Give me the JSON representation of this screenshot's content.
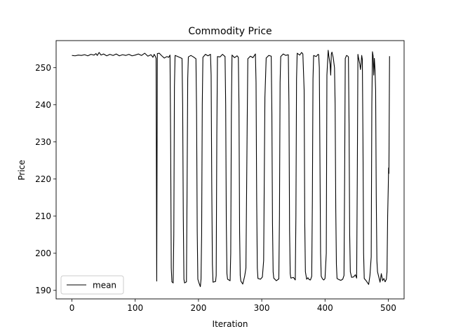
{
  "chart_data": {
    "type": "line",
    "title": "Commodity Price",
    "xlabel": "Iteration",
    "ylabel": "Price",
    "xlim": [
      -25,
      525
    ],
    "ylim": [
      187.7,
      257.3
    ],
    "xticks": [
      0,
      100,
      200,
      300,
      400,
      500
    ],
    "yticks": [
      190,
      200,
      210,
      220,
      230,
      240,
      250
    ],
    "grid": false,
    "legend_position": "lower-left",
    "series": [
      {
        "name": "mean",
        "color": "#000000",
        "points": [
          [
            0,
            253.3
          ],
          [
            5,
            253.2
          ],
          [
            10,
            253.4
          ],
          [
            15,
            253.3
          ],
          [
            20,
            253.5
          ],
          [
            25,
            253.2
          ],
          [
            30,
            253.6
          ],
          [
            35,
            253.4
          ],
          [
            38,
            253.8
          ],
          [
            40,
            253.3
          ],
          [
            43,
            254.1
          ],
          [
            46,
            253.4
          ],
          [
            50,
            253.7
          ],
          [
            55,
            253.2
          ],
          [
            60,
            253.6
          ],
          [
            65,
            253.3
          ],
          [
            70,
            253.7
          ],
          [
            75,
            253.2
          ],
          [
            80,
            253.5
          ],
          [
            85,
            253.3
          ],
          [
            90,
            253.6
          ],
          [
            95,
            253.2
          ],
          [
            100,
            253.4
          ],
          [
            105,
            253.7
          ],
          [
            110,
            253.3
          ],
          [
            115,
            253.9
          ],
          [
            120,
            253.1
          ],
          [
            125,
            253.5
          ],
          [
            128,
            252.8
          ],
          [
            130,
            253.6
          ],
          [
            132,
            253.0
          ],
          [
            133,
            252.5
          ],
          [
            134,
            192.5
          ],
          [
            135,
            253.8
          ],
          [
            138,
            253.9
          ],
          [
            142,
            253.2
          ],
          [
            146,
            252.6
          ],
          [
            150,
            253.0
          ],
          [
            153,
            252.8
          ],
          [
            155,
            253.4
          ],
          [
            156,
            230
          ],
          [
            157,
            196
          ],
          [
            158,
            192.3
          ],
          [
            160,
            192.0
          ],
          [
            161,
            205
          ],
          [
            162,
            245
          ],
          [
            163,
            253.3
          ],
          [
            166,
            253.1
          ],
          [
            170,
            252.8
          ],
          [
            174,
            252.5
          ],
          [
            175,
            240
          ],
          [
            176,
            210
          ],
          [
            177,
            193
          ],
          [
            178,
            192.0
          ],
          [
            181,
            192.3
          ],
          [
            182,
            218
          ],
          [
            183,
            247
          ],
          [
            184,
            252.9
          ],
          [
            188,
            253.3
          ],
          [
            192,
            252.9
          ],
          [
            196,
            252.4
          ],
          [
            197,
            238
          ],
          [
            198,
            206
          ],
          [
            199,
            193
          ],
          [
            201,
            191.9
          ],
          [
            203,
            191.0
          ],
          [
            204,
            193
          ],
          [
            205,
            205
          ],
          [
            206,
            240
          ],
          [
            207,
            252.8
          ],
          [
            211,
            253.6
          ],
          [
            215,
            253.2
          ],
          [
            219,
            253.6
          ],
          [
            220,
            248
          ],
          [
            221,
            218
          ],
          [
            222,
            197
          ],
          [
            223,
            192.2
          ],
          [
            227,
            192.4
          ],
          [
            228,
            194
          ],
          [
            229,
            232
          ],
          [
            230,
            253.0
          ],
          [
            234,
            252.9
          ],
          [
            238,
            253.6
          ],
          [
            242,
            253.0
          ],
          [
            243,
            240
          ],
          [
            244,
            208
          ],
          [
            245,
            194.5
          ],
          [
            246,
            193.0
          ],
          [
            250,
            192.6
          ],
          [
            251,
            200
          ],
          [
            252,
            238
          ],
          [
            253,
            253.4
          ],
          [
            257,
            252.7
          ],
          [
            261,
            253.2
          ],
          [
            263,
            252.8
          ],
          [
            264,
            240
          ],
          [
            265,
            206
          ],
          [
            266,
            194
          ],
          [
            267,
            192.5
          ],
          [
            270,
            191.7
          ],
          [
            273,
            193.8
          ],
          [
            275,
            196
          ],
          [
            277,
            235
          ],
          [
            278,
            252.4
          ],
          [
            282,
            253.1
          ],
          [
            286,
            252.7
          ],
          [
            290,
            253.7
          ],
          [
            291,
            246
          ],
          [
            292,
            214
          ],
          [
            293,
            196
          ],
          [
            294,
            193.2
          ],
          [
            298,
            193.0
          ],
          [
            301,
            193.6
          ],
          [
            303,
            198
          ],
          [
            305,
            242
          ],
          [
            307,
            252.6
          ],
          [
            311,
            253.3
          ],
          [
            315,
            253.1
          ],
          [
            316,
            238
          ],
          [
            317,
            208
          ],
          [
            318,
            195
          ],
          [
            319,
            193.3
          ],
          [
            323,
            192.6
          ],
          [
            327,
            193.1
          ],
          [
            328,
            210
          ],
          [
            329,
            246
          ],
          [
            330,
            253.0
          ],
          [
            334,
            253.7
          ],
          [
            338,
            253.3
          ],
          [
            342,
            253.5
          ],
          [
            343,
            240
          ],
          [
            344,
            206
          ],
          [
            345,
            194.5
          ],
          [
            346,
            193.3
          ],
          [
            350,
            193.5
          ],
          [
            353,
            192.8
          ],
          [
            354,
            210
          ],
          [
            355,
            247
          ],
          [
            356,
            253.9
          ],
          [
            360,
            253.4
          ],
          [
            363,
            254.1
          ],
          [
            365,
            253.7
          ],
          [
            367,
            244
          ],
          [
            368,
            208
          ],
          [
            369,
            195
          ],
          [
            371,
            193.0
          ],
          [
            373,
            193.4
          ],
          [
            375,
            192.9
          ],
          [
            377,
            192.8
          ],
          [
            379,
            193.8
          ],
          [
            380,
            214
          ],
          [
            381,
            247
          ],
          [
            382,
            253.3
          ],
          [
            386,
            253.0
          ],
          [
            389,
            253.6
          ],
          [
            390,
            253.5
          ],
          [
            391,
            250
          ],
          [
            392,
            225
          ],
          [
            393,
            200
          ],
          [
            394,
            193.8
          ],
          [
            396,
            193.1
          ],
          [
            398,
            192.8
          ],
          [
            400,
            193.2
          ],
          [
            402,
            200
          ],
          [
            403,
            248
          ],
          [
            405,
            254.7
          ],
          [
            406,
            253.2
          ],
          [
            408,
            251.0
          ],
          [
            409,
            248
          ],
          [
            410,
            253.7
          ],
          [
            411,
            254.2
          ],
          [
            413,
            252.7
          ],
          [
            415,
            250
          ],
          [
            416,
            240
          ],
          [
            417,
            212
          ],
          [
            418,
            197
          ],
          [
            419,
            193.2
          ],
          [
            422,
            192.9
          ],
          [
            425,
            192.7
          ],
          [
            428,
            193.0
          ],
          [
            430,
            194.0
          ],
          [
            431,
            220
          ],
          [
            432,
            252.5
          ],
          [
            434,
            253.3
          ],
          [
            436,
            253.1
          ],
          [
            437,
            252.9
          ],
          [
            438,
            235
          ],
          [
            439,
            205
          ],
          [
            440,
            195.0
          ],
          [
            442,
            193.5
          ],
          [
            445,
            193.6
          ],
          [
            448,
            194.2
          ],
          [
            450,
            193.3
          ],
          [
            451,
            220
          ],
          [
            452,
            253.6
          ],
          [
            453,
            252.6
          ],
          [
            455,
            251.0
          ],
          [
            456,
            249.5
          ],
          [
            457,
            251.0
          ],
          [
            458,
            253.3
          ],
          [
            459,
            252.2
          ],
          [
            460,
            230
          ],
          [
            461,
            200
          ],
          [
            462,
            193.2
          ],
          [
            465,
            192.6
          ],
          [
            469,
            191.6
          ],
          [
            471,
            194.0
          ],
          [
            473,
            199
          ],
          [
            474,
            240
          ],
          [
            475,
            254.3
          ],
          [
            476,
            253.2
          ],
          [
            477,
            248.0
          ],
          [
            478,
            252.5
          ],
          [
            479,
            249.5
          ],
          [
            480,
            244
          ],
          [
            481,
            215
          ],
          [
            482,
            198
          ],
          [
            483,
            195.0
          ],
          [
            485,
            193.6
          ],
          [
            487,
            192.2
          ],
          [
            489,
            194.5
          ],
          [
            491,
            192.6
          ],
          [
            493,
            193.2
          ],
          [
            495,
            192.3
          ],
          [
            497,
            193.0
          ],
          [
            498,
            195
          ],
          [
            499,
            210
          ],
          [
            500,
            218.0
          ],
          [
            500.5,
            223.0
          ],
          [
            501,
            221.5
          ],
          [
            502,
            253.1
          ]
        ]
      }
    ]
  }
}
